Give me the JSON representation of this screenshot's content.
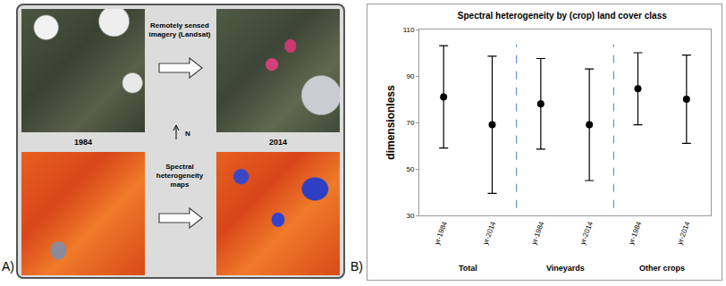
{
  "panel_letters": [
    "A)",
    "B)"
  ],
  "panel_a": {
    "top_label": "Remotely sensed imagery (Landsat)",
    "bottom_label": "Spectral heterogeneity maps",
    "years": [
      "1984",
      "2014"
    ],
    "north": "N"
  },
  "chart_data": {
    "type": "scatter",
    "title": "Spectral heterogeneity by (crop) land cover class",
    "y_label": "dimensionless",
    "ylim": [
      30,
      110
    ],
    "yticks": [
      30,
      50,
      70,
      90,
      110
    ],
    "grid": false,
    "color": "#000000",
    "marker": "circle",
    "groups": [
      {
        "name": "Total",
        "categories": [
          "yr-1984",
          "yr-2014"
        ],
        "values": [
          81,
          69
        ],
        "errors": [
          22,
          29.5
        ]
      },
      {
        "name": "Vineyards",
        "categories": [
          "yr-1984",
          "yr-2014"
        ],
        "values": [
          78,
          69
        ],
        "errors": [
          19.5,
          24
        ]
      },
      {
        "name": "Other crops",
        "categories": [
          "yr-1984",
          "yr-2014"
        ],
        "values": [
          84.5,
          80
        ],
        "errors": [
          15.5,
          19
        ]
      }
    ]
  }
}
